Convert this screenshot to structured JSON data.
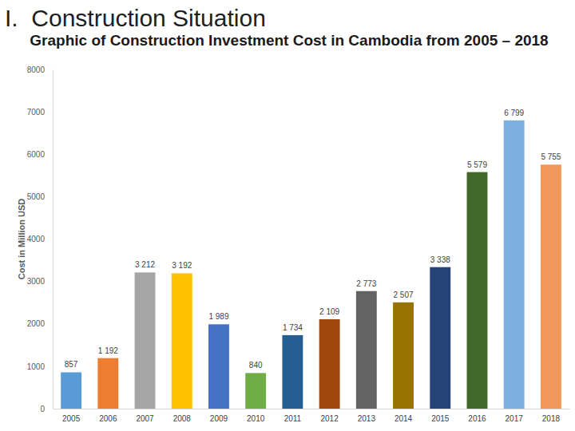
{
  "header": {
    "title": "I.  Construction Situation"
  },
  "chart_data": {
    "type": "bar",
    "title": "Graphic of Construction Investment Cost in Cambodia from 2005 – 2018",
    "y_label": "Cost in Million USD",
    "categories": [
      "2005",
      "2006",
      "2007",
      "2008",
      "2009",
      "2010",
      "2011",
      "2012",
      "2013",
      "2014",
      "2015",
      "2016",
      "2017",
      "2018"
    ],
    "values": [
      857,
      1192,
      3212,
      3192,
      1989,
      840,
      1734,
      2109,
      2773,
      2507,
      3338,
      5579,
      6799,
      5755
    ],
    "value_labels": [
      "857",
      "1 192",
      "3 212",
      "3 192",
      "1 989",
      "840",
      "1 734",
      "2 109",
      "2 773",
      "2 507",
      "3 338",
      "5 579",
      "6 799",
      "5 755"
    ],
    "colors": [
      "#5b9bd5",
      "#ed7d31",
      "#a5a5a5",
      "#ffc000",
      "#4472c4",
      "#70ad47",
      "#255e91",
      "#9e480e",
      "#636363",
      "#997300",
      "#264478",
      "#43682b",
      "#7cafdd",
      "#f1975a"
    ],
    "ylim": [
      0,
      8000
    ],
    "yticks": [
      0,
      1000,
      2000,
      3000,
      4000,
      5000,
      6000,
      7000,
      8000
    ],
    "grid": false,
    "data_labels": true
  }
}
